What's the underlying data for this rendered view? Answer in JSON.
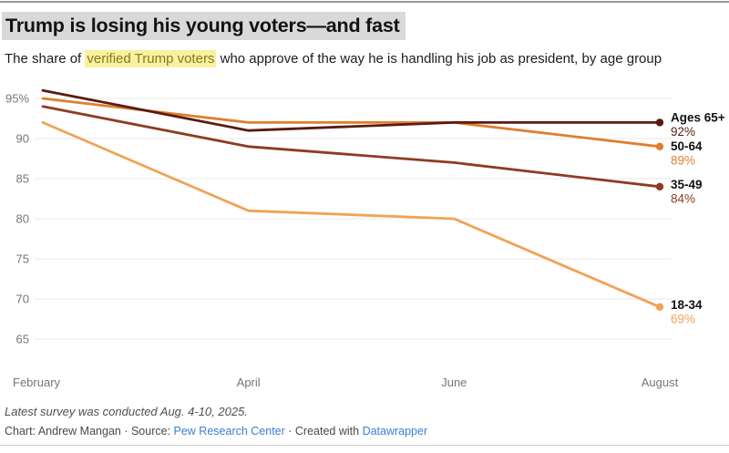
{
  "header": {
    "title": "Trump is losing his young voters—and fast",
    "subtitle_prefix": "The share of ",
    "subtitle_link": "verified Trump voters",
    "subtitle_suffix": " who approve of the way he is handling his job as president, by age group"
  },
  "chart_data": {
    "type": "line",
    "x": [
      "February",
      "April",
      "June",
      "August"
    ],
    "series": [
      {
        "name": "Ages 65+",
        "values": [
          96,
          91,
          92,
          92
        ],
        "color": "#5a1b12",
        "end_label": "92%"
      },
      {
        "name": "50-64",
        "values": [
          95,
          92,
          92,
          89
        ],
        "color": "#de7f2d",
        "end_label": "89%"
      },
      {
        "name": "35-49",
        "values": [
          94,
          89,
          87,
          84
        ],
        "color": "#8e3b22",
        "end_label": "84%"
      },
      {
        "name": "18-34",
        "values": [
          92,
          81,
          80,
          69
        ],
        "color": "#f0a354",
        "end_label": "69%"
      }
    ],
    "y_ticks": [
      {
        "v": 95,
        "label": "95%"
      },
      {
        "v": 90,
        "label": "90"
      },
      {
        "v": 85,
        "label": "85"
      },
      {
        "v": 80,
        "label": "80"
      },
      {
        "v": 75,
        "label": "75"
      },
      {
        "v": 70,
        "label": "70"
      },
      {
        "v": 65,
        "label": "65"
      }
    ],
    "ylim": [
      65,
      97
    ],
    "grid": "horizontal",
    "gridline_color": "#e9e9e9",
    "axis_text_color": "#767676",
    "series_name_color": "#111111",
    "legend_position": "right-end-labels"
  },
  "footer": {
    "note": "Latest survey was conducted Aug. 4-10, 2025.",
    "credit_prefix": "Chart: Andrew Mangan · Source: ",
    "source_link": "Pew Research Center",
    "credit_middle": " · Created with ",
    "tool_link": "Datawrapper",
    "link_color": "#3b7fd0"
  }
}
